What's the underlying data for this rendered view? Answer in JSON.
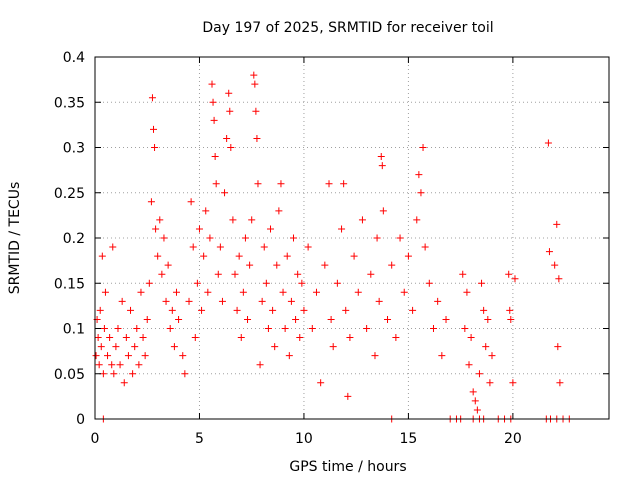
{
  "chart_data": {
    "type": "scatter",
    "title": "Day 197 of 2025, SRMTID for receiver toil",
    "xlabel": "GPS time / hours",
    "ylabel": "SRMTID / TECUs",
    "xlim": [
      0,
      24.6
    ],
    "ylim": [
      0,
      0.4
    ],
    "xticks": [
      0,
      5,
      10,
      15,
      20
    ],
    "yticks": [
      0,
      0.05,
      0.1,
      0.15,
      0.2,
      0.25,
      0.3,
      0.35,
      0.4
    ],
    "xtick_labels": [
      "0",
      "5",
      "10",
      "15",
      "20"
    ],
    "ytick_labels": [
      "0",
      "0.05",
      "0.1",
      "0.15",
      "0.2",
      "0.25",
      "0.3",
      "0.35",
      "0.4"
    ],
    "grid": true,
    "marker": "+",
    "color": "#ff0000",
    "series": [
      {
        "points": [
          [
            0.05,
            0.07
          ],
          [
            0.1,
            0.11
          ],
          [
            0.15,
            0.09
          ],
          [
            0.2,
            0.06
          ],
          [
            0.25,
            0.12
          ],
          [
            0.3,
            0.08
          ],
          [
            0.35,
            0.18
          ],
          [
            0.4,
            0.05
          ],
          [
            0.45,
            0.1
          ],
          [
            0.5,
            0.14
          ],
          [
            0.6,
            0.07
          ],
          [
            0.7,
            0.09
          ],
          [
            0.8,
            0.06
          ],
          [
            0.85,
            0.19
          ],
          [
            0.9,
            0.05
          ],
          [
            1.0,
            0.08
          ],
          [
            1.1,
            0.1
          ],
          [
            1.2,
            0.06
          ],
          [
            1.3,
            0.13
          ],
          [
            1.4,
            0.04
          ],
          [
            1.5,
            0.09
          ],
          [
            1.6,
            0.07
          ],
          [
            1.7,
            0.12
          ],
          [
            1.8,
            0.05
          ],
          [
            1.9,
            0.08
          ],
          [
            2.0,
            0.1
          ],
          [
            2.1,
            0.06
          ],
          [
            2.2,
            0.14
          ],
          [
            2.3,
            0.09
          ],
          [
            2.4,
            0.07
          ],
          [
            2.5,
            0.11
          ],
          [
            2.6,
            0.15
          ],
          [
            2.7,
            0.24
          ],
          [
            2.75,
            0.355
          ],
          [
            2.8,
            0.32
          ],
          [
            2.85,
            0.3
          ],
          [
            2.9,
            0.21
          ],
          [
            3.0,
            0.18
          ],
          [
            3.1,
            0.22
          ],
          [
            3.2,
            0.16
          ],
          [
            3.3,
            0.2
          ],
          [
            3.4,
            0.13
          ],
          [
            3.5,
            0.17
          ],
          [
            3.6,
            0.1
          ],
          [
            3.7,
            0.12
          ],
          [
            3.8,
            0.08
          ],
          [
            3.9,
            0.14
          ],
          [
            4.0,
            0.11
          ],
          [
            4.2,
            0.07
          ],
          [
            4.3,
            0.05
          ],
          [
            4.5,
            0.13
          ],
          [
            4.6,
            0.24
          ],
          [
            4.7,
            0.19
          ],
          [
            4.8,
            0.09
          ],
          [
            4.9,
            0.15
          ],
          [
            5.0,
            0.21
          ],
          [
            5.1,
            0.12
          ],
          [
            5.2,
            0.18
          ],
          [
            5.3,
            0.23
          ],
          [
            5.4,
            0.14
          ],
          [
            5.5,
            0.2
          ],
          [
            5.6,
            0.37
          ],
          [
            5.65,
            0.35
          ],
          [
            5.7,
            0.33
          ],
          [
            5.75,
            0.29
          ],
          [
            5.8,
            0.26
          ],
          [
            5.9,
            0.16
          ],
          [
            6.0,
            0.19
          ],
          [
            6.1,
            0.13
          ],
          [
            6.2,
            0.25
          ],
          [
            6.3,
            0.31
          ],
          [
            6.4,
            0.36
          ],
          [
            6.45,
            0.34
          ],
          [
            6.5,
            0.3
          ],
          [
            6.6,
            0.22
          ],
          [
            6.7,
            0.16
          ],
          [
            6.8,
            0.12
          ],
          [
            6.9,
            0.18
          ],
          [
            7.0,
            0.09
          ],
          [
            7.1,
            0.14
          ],
          [
            7.2,
            0.2
          ],
          [
            7.3,
            0.11
          ],
          [
            7.4,
            0.17
          ],
          [
            7.5,
            0.22
          ],
          [
            7.6,
            0.38
          ],
          [
            7.65,
            0.37
          ],
          [
            7.7,
            0.34
          ],
          [
            7.75,
            0.31
          ],
          [
            7.8,
            0.26
          ],
          [
            7.9,
            0.06
          ],
          [
            8.0,
            0.13
          ],
          [
            8.1,
            0.19
          ],
          [
            8.2,
            0.15
          ],
          [
            8.3,
            0.1
          ],
          [
            8.4,
            0.21
          ],
          [
            8.5,
            0.12
          ],
          [
            8.6,
            0.08
          ],
          [
            8.7,
            0.17
          ],
          [
            8.8,
            0.23
          ],
          [
            8.9,
            0.26
          ],
          [
            9.0,
            0.14
          ],
          [
            9.1,
            0.1
          ],
          [
            9.2,
            0.18
          ],
          [
            9.3,
            0.07
          ],
          [
            9.4,
            0.13
          ],
          [
            9.5,
            0.2
          ],
          [
            9.6,
            0.11
          ],
          [
            9.7,
            0.16
          ],
          [
            9.8,
            0.09
          ],
          [
            9.9,
            0.15
          ],
          [
            10.0,
            0.12
          ],
          [
            10.2,
            0.19
          ],
          [
            10.4,
            0.1
          ],
          [
            10.6,
            0.14
          ],
          [
            10.8,
            0.04
          ],
          [
            11.0,
            0.17
          ],
          [
            11.2,
            0.26
          ],
          [
            11.3,
            0.11
          ],
          [
            11.4,
            0.08
          ],
          [
            11.6,
            0.15
          ],
          [
            11.8,
            0.21
          ],
          [
            11.9,
            0.26
          ],
          [
            12.0,
            0.12
          ],
          [
            12.1,
            0.025
          ],
          [
            12.2,
            0.09
          ],
          [
            12.4,
            0.18
          ],
          [
            12.6,
            0.14
          ],
          [
            12.8,
            0.22
          ],
          [
            13.0,
            0.1
          ],
          [
            13.2,
            0.16
          ],
          [
            13.4,
            0.07
          ],
          [
            13.5,
            0.2
          ],
          [
            13.6,
            0.13
          ],
          [
            13.7,
            0.29
          ],
          [
            13.75,
            0.28
          ],
          [
            13.8,
            0.23
          ],
          [
            14.0,
            0.11
          ],
          [
            14.2,
            0.17
          ],
          [
            14.4,
            0.09
          ],
          [
            14.6,
            0.2
          ],
          [
            14.8,
            0.14
          ],
          [
            15.0,
            0.18
          ],
          [
            15.2,
            0.12
          ],
          [
            15.4,
            0.22
          ],
          [
            15.5,
            0.27
          ],
          [
            15.6,
            0.25
          ],
          [
            15.7,
            0.3
          ],
          [
            15.8,
            0.19
          ],
          [
            16.0,
            0.15
          ],
          [
            16.2,
            0.1
          ],
          [
            16.4,
            0.13
          ],
          [
            16.6,
            0.07
          ],
          [
            16.8,
            0.11
          ],
          [
            17.6,
            0.16
          ],
          [
            17.7,
            0.1
          ],
          [
            17.8,
            0.14
          ],
          [
            17.9,
            0.06
          ],
          [
            18.0,
            0.09
          ],
          [
            18.1,
            0.03
          ],
          [
            18.2,
            0.02
          ],
          [
            18.3,
            0.01
          ],
          [
            18.4,
            0.05
          ],
          [
            18.5,
            0.15
          ],
          [
            18.6,
            0.12
          ],
          [
            18.7,
            0.08
          ],
          [
            18.8,
            0.11
          ],
          [
            18.9,
            0.04
          ],
          [
            19.0,
            0.07
          ],
          [
            19.8,
            0.16
          ],
          [
            19.85,
            0.12
          ],
          [
            19.9,
            0.11
          ],
          [
            20.0,
            0.04
          ],
          [
            20.1,
            0.155
          ],
          [
            21.7,
            0.305
          ],
          [
            21.75,
            0.185
          ],
          [
            22.0,
            0.17
          ],
          [
            22.1,
            0.215
          ],
          [
            22.15,
            0.08
          ],
          [
            22.2,
            0.155
          ],
          [
            22.25,
            0.04
          ],
          [
            0.4,
            0.0
          ],
          [
            14.2,
            0.0
          ],
          [
            17.0,
            0.0
          ],
          [
            17.3,
            0.0
          ],
          [
            17.5,
            0.0
          ],
          [
            18.1,
            0.0
          ],
          [
            18.4,
            0.0
          ],
          [
            18.6,
            0.0
          ],
          [
            19.3,
            0.0
          ],
          [
            19.6,
            0.0
          ],
          [
            19.9,
            0.0
          ],
          [
            21.6,
            0.0
          ],
          [
            21.8,
            0.0
          ],
          [
            22.1,
            0.0
          ],
          [
            22.4,
            0.0
          ],
          [
            22.7,
            0.0
          ]
        ]
      }
    ]
  }
}
